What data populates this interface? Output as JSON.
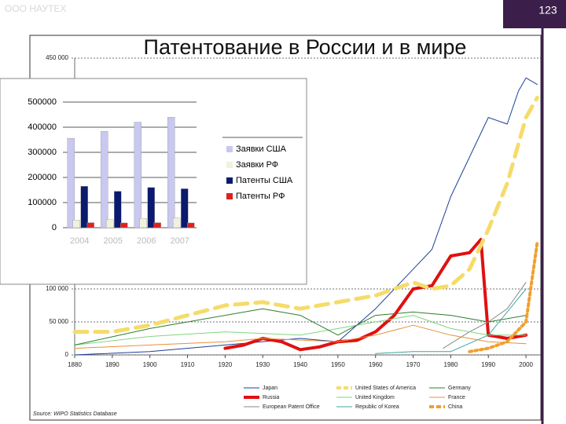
{
  "slide": {
    "company": "ООО НАУТЕХ",
    "page_number": "123",
    "title": "Патентование в России и в мире"
  },
  "chart_data": [
    {
      "type": "line",
      "source": "Source: WIPO Statistics Database",
      "xlim": [
        1880,
        2005
      ],
      "xticks": [
        1880,
        1890,
        1900,
        1910,
        1920,
        1930,
        1940,
        1950,
        1960,
        1970,
        1980,
        1990,
        2000
      ],
      "ylim": [
        0,
        450000
      ],
      "yticks": [
        {
          "value": 0,
          "label": "0"
        },
        {
          "value": 50000,
          "label": "50 000"
        },
        {
          "value": 100000,
          "label": "100 000"
        },
        {
          "value": 450000,
          "label": "450 000"
        }
      ],
      "series": [
        {
          "name": "Japan",
          "color": "#1f3f9a",
          "style": "solid",
          "x": [
            1880,
            1900,
            1920,
            1940,
            1950,
            1960,
            1970,
            1975,
            1980,
            1985,
            1990,
            1995,
            1998,
            2000,
            2003
          ],
          "values": [
            0,
            5000,
            15000,
            25000,
            20000,
            70000,
            130000,
            160000,
            240000,
            300000,
            360000,
            350000,
            400000,
            420000,
            410000
          ]
        },
        {
          "name": "Russia",
          "color": "#e01010",
          "style": "thick",
          "x": [
            1920,
            1925,
            1930,
            1935,
            1940,
            1945,
            1950,
            1955,
            1960,
            1965,
            1970,
            1975,
            1980,
            1985,
            1988,
            1990,
            1995,
            2000
          ],
          "values": [
            10000,
            15000,
            25000,
            20000,
            8000,
            12000,
            20000,
            22000,
            35000,
            60000,
            100000,
            105000,
            150000,
            155000,
            175000,
            30000,
            25000,
            30000
          ]
        },
        {
          "name": "European Patent Office",
          "color": "#8a8a8a",
          "style": "solid",
          "x": [
            1978,
            1985,
            1990,
            1995,
            2000
          ],
          "values": [
            10000,
            35000,
            50000,
            70000,
            110000
          ]
        },
        {
          "name": "United States of America",
          "color": "#f5dc6a",
          "style": "dashed",
          "x": [
            1880,
            1890,
            1900,
            1910,
            1920,
            1930,
            1940,
            1945,
            1950,
            1960,
            1970,
            1975,
            1980,
            1985,
            1990,
            1995,
            2000,
            2003
          ],
          "values": [
            35000,
            35000,
            45000,
            60000,
            75000,
            80000,
            70000,
            75000,
            80000,
            90000,
            110000,
            100000,
            105000,
            130000,
            190000,
            260000,
            360000,
            390000
          ]
        },
        {
          "name": "United Kingdom",
          "color": "#7fd67f",
          "style": "solid",
          "x": [
            1880,
            1900,
            1920,
            1940,
            1950,
            1960,
            1970,
            1980,
            1990,
            2000
          ],
          "values": [
            15000,
            28000,
            35000,
            30000,
            40000,
            50000,
            60000,
            40000,
            30000,
            30000
          ]
        },
        {
          "name": "Republic of Korea",
          "color": "#3aa6a0",
          "style": "solid",
          "x": [
            1960,
            1970,
            1980,
            1990,
            2000
          ],
          "values": [
            2000,
            5000,
            5000,
            30000,
            100000
          ]
        },
        {
          "name": "Germany",
          "color": "#2e7d2e",
          "style": "solid",
          "x": [
            1880,
            1900,
            1910,
            1930,
            1940,
            1950,
            1960,
            1970,
            1980,
            1990,
            2000
          ],
          "values": [
            15000,
            40000,
            50000,
            70000,
            60000,
            30000,
            60000,
            65000,
            60000,
            50000,
            60000
          ]
        },
        {
          "name": "France",
          "color": "#e8903a",
          "style": "solid",
          "x": [
            1880,
            1900,
            1920,
            1930,
            1950,
            1960,
            1970,
            1980,
            1990,
            2000
          ],
          "values": [
            10000,
            15000,
            20000,
            25000,
            20000,
            30000,
            45000,
            30000,
            20000,
            17000
          ]
        },
        {
          "name": "China",
          "color": "#f0a030",
          "style": "dotted",
          "x": [
            1985,
            1990,
            1995,
            2000,
            2003
          ],
          "values": [
            5000,
            10000,
            20000,
            50000,
            170000
          ]
        }
      ]
    },
    {
      "type": "bar",
      "categories": [
        "2004",
        "2005",
        "2006",
        "2007"
      ],
      "ylim": [
        0,
        500000
      ],
      "yticks": [
        0,
        100000,
        200000,
        300000,
        400000,
        500000
      ],
      "series": [
        {
          "name": "Заявки США",
          "color": "#c8c8f0",
          "values": [
            356000,
            384000,
            420000,
            440000
          ]
        },
        {
          "name": "Заявки РФ",
          "color": "#f2f2dc",
          "values": [
            30000,
            32000,
            37000,
            39000
          ]
        },
        {
          "name": "Патенты США",
          "color": "#0a1a6e",
          "values": [
            165000,
            145000,
            160000,
            155000
          ]
        },
        {
          "name": "Патенты РФ",
          "color": "#e02020",
          "values": [
            20000,
            19000,
            20000,
            19000
          ]
        }
      ]
    }
  ]
}
